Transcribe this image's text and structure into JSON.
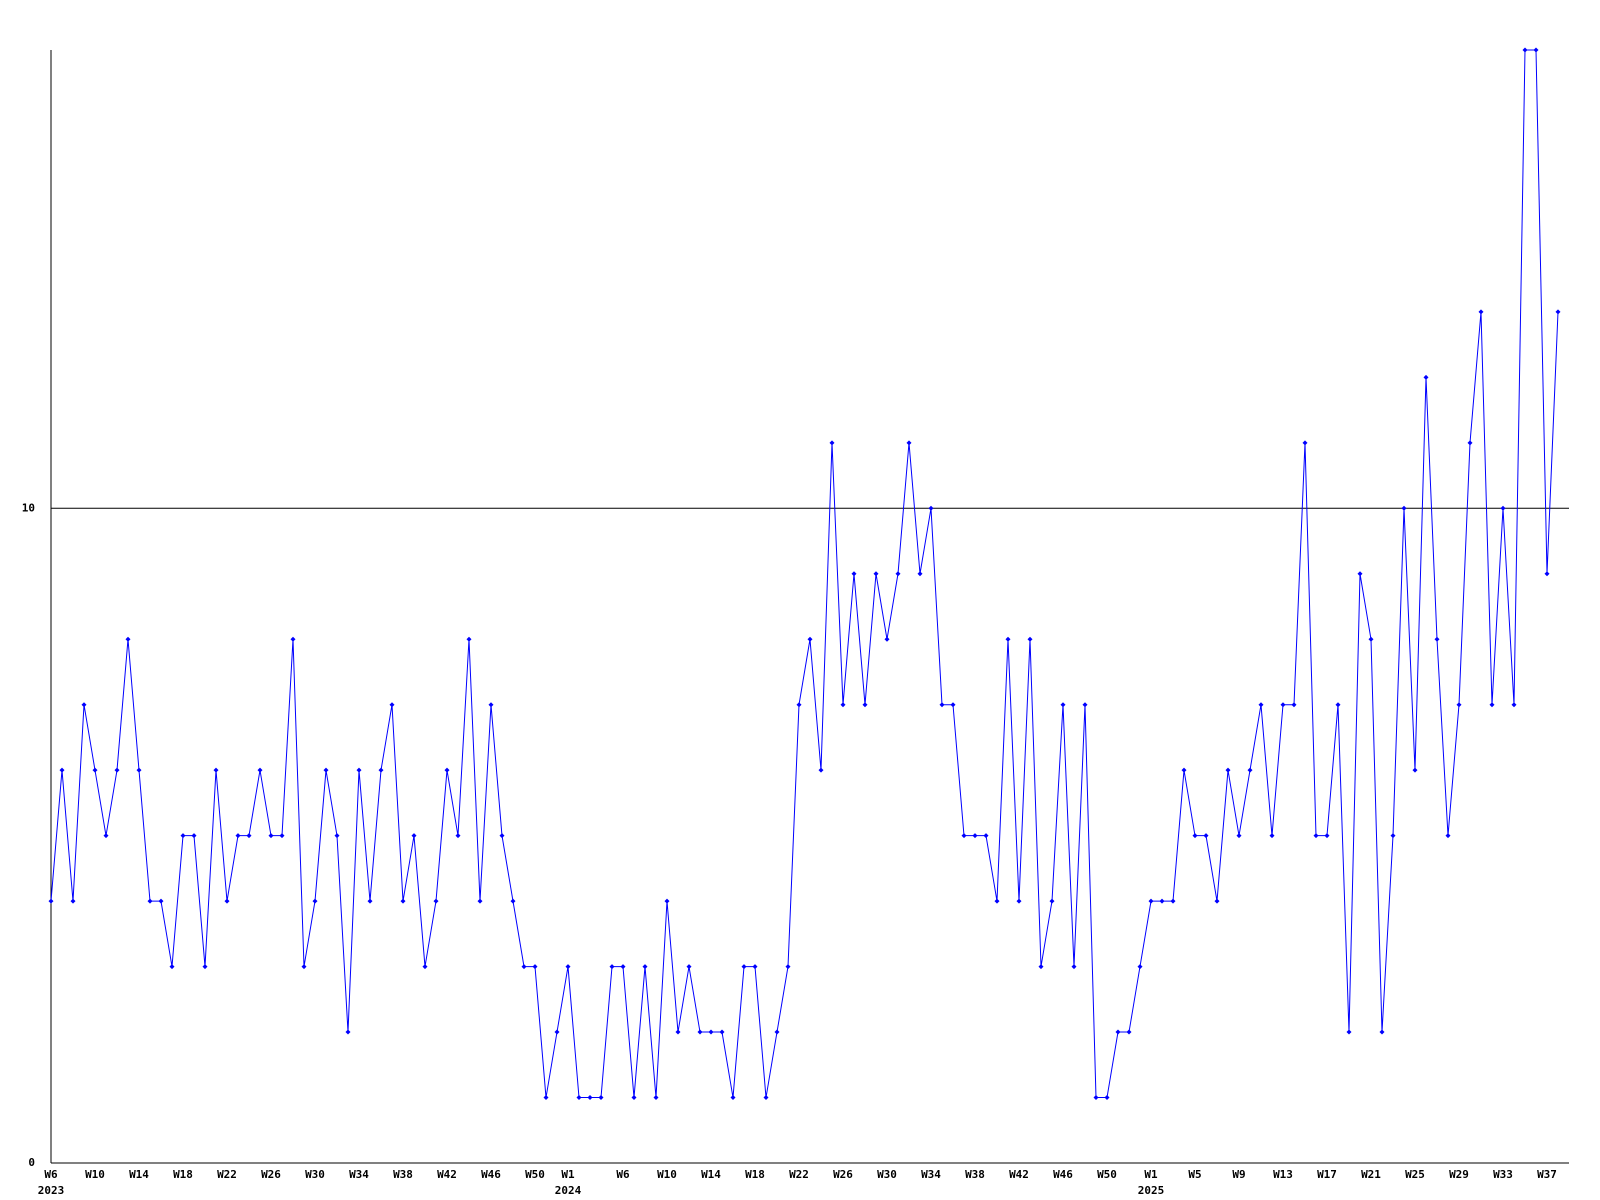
{
  "chart_data": {
    "type": "line",
    "categories": [
      "W6",
      null,
      null,
      null,
      "W10",
      null,
      null,
      null,
      "W14",
      null,
      null,
      null,
      "W18",
      null,
      null,
      null,
      "W22",
      null,
      null,
      null,
      "W26",
      null,
      null,
      null,
      "W30",
      null,
      null,
      null,
      "W34",
      null,
      null,
      null,
      "W38",
      null,
      null,
      null,
      "W42",
      null,
      null,
      null,
      "W46",
      null,
      null,
      null,
      "W50",
      null,
      null,
      "W1",
      null,
      null,
      null,
      null,
      "W6",
      null,
      null,
      null,
      "W10",
      null,
      null,
      null,
      "W14",
      null,
      null,
      null,
      "W18",
      null,
      null,
      null,
      "W22",
      null,
      null,
      null,
      "W26",
      null,
      null,
      null,
      "W30",
      null,
      null,
      null,
      "W34",
      null,
      null,
      null,
      "W38",
      null,
      null,
      null,
      "W42",
      null,
      null,
      null,
      "W46",
      null,
      null,
      null,
      "W50",
      null,
      null,
      null,
      "W1",
      null,
      null,
      null,
      "W5",
      null,
      null,
      null,
      "W9",
      null,
      null,
      null,
      "W13",
      null,
      null,
      null,
      "W17",
      null,
      null,
      null,
      "W21",
      null,
      null,
      null,
      "W25",
      null,
      null,
      null,
      "W29",
      null,
      null,
      null,
      "W33",
      null,
      null,
      null,
      "W37",
      null
    ],
    "category_years": [
      "2023",
      null,
      null,
      null,
      null,
      null,
      null,
      null,
      null,
      null,
      null,
      null,
      null,
      null,
      null,
      null,
      null,
      null,
      null,
      null,
      null,
      null,
      null,
      null,
      null,
      null,
      null,
      null,
      null,
      null,
      null,
      null,
      null,
      null,
      null,
      null,
      null,
      null,
      null,
      null,
      null,
      null,
      null,
      null,
      null,
      null,
      null,
      "2024",
      null,
      null,
      null,
      null,
      null,
      null,
      null,
      null,
      null,
      null,
      null,
      null,
      null,
      null,
      null,
      null,
      null,
      null,
      null,
      null,
      null,
      null,
      null,
      null,
      null,
      null,
      null,
      null,
      null,
      null,
      null,
      null,
      null,
      null,
      null,
      null,
      null,
      null,
      null,
      null,
      null,
      null,
      null,
      null,
      null,
      null,
      null,
      null,
      null,
      null,
      null,
      null,
      "2025",
      null,
      null,
      null,
      null,
      null,
      null,
      null,
      null,
      null,
      null,
      null,
      null,
      null,
      null,
      null,
      null,
      null,
      null,
      null,
      null,
      null,
      null,
      null,
      null,
      null,
      null,
      null,
      null,
      null,
      null,
      null,
      null,
      null,
      null,
      null,
      null,
      null
    ],
    "values": [
      4,
      6,
      4,
      7,
      6,
      5,
      6,
      8,
      6,
      4,
      4,
      3,
      5,
      5,
      3,
      6,
      4,
      5,
      5,
      6,
      5,
      5,
      8,
      3,
      4,
      6,
      5,
      2,
      6,
      4,
      6,
      7,
      4,
      5,
      3,
      4,
      6,
      5,
      8,
      4,
      7,
      5,
      4,
      3,
      3,
      1,
      2,
      3,
      1,
      1,
      1,
      3,
      3,
      1,
      3,
      1,
      4,
      2,
      3,
      2,
      2,
      2,
      1,
      3,
      3,
      1,
      2,
      3,
      7,
      8,
      6,
      11,
      7,
      9,
      7,
      9,
      8,
      9,
      11,
      9,
      10,
      7,
      7,
      5,
      5,
      5,
      4,
      8,
      4,
      8,
      3,
      4,
      7,
      3,
      7,
      1,
      1,
      2,
      2,
      3,
      4,
      4,
      4,
      6,
      5,
      5,
      4,
      6,
      5,
      6,
      7,
      5,
      7,
      7,
      11,
      5,
      5,
      7,
      2,
      9,
      8,
      2,
      5,
      10,
      6,
      12,
      8,
      5,
      7,
      11,
      13,
      7,
      10,
      7,
      17,
      17,
      9,
      13
    ],
    "color": "#0000ff",
    "ylim": [
      0,
      17
    ],
    "yticks": [
      0,
      10
    ],
    "grid": true
  }
}
